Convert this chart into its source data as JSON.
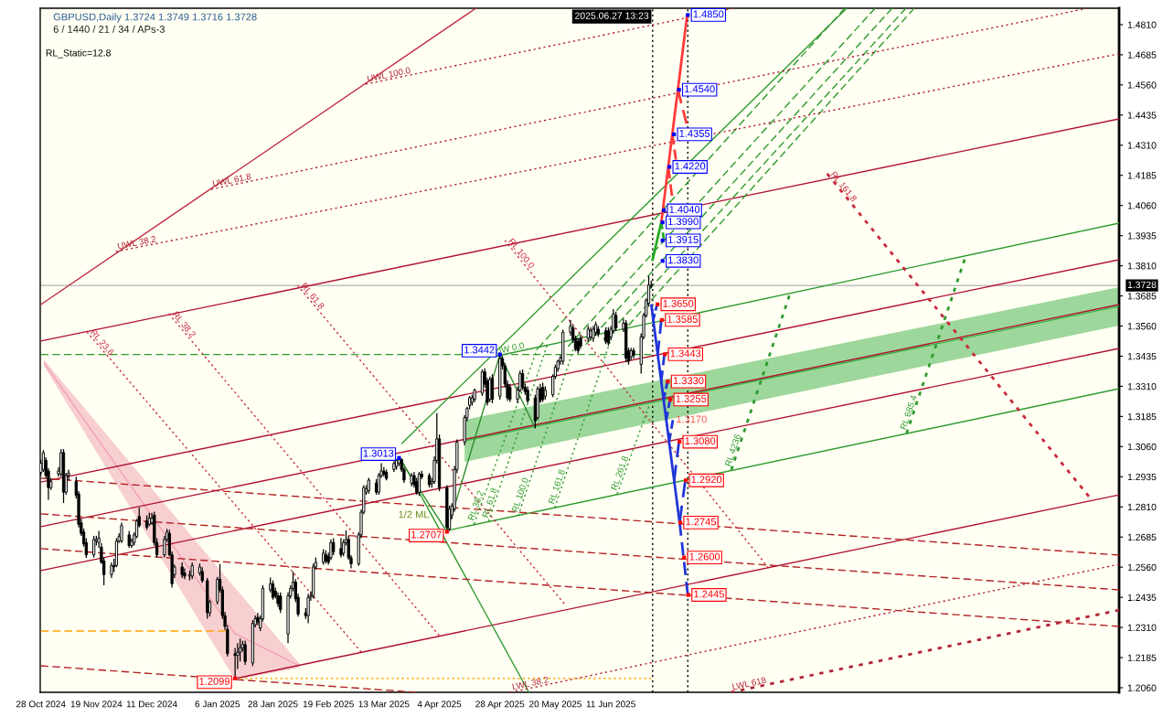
{
  "chart_data": {
    "type": "candlestick",
    "title": "GBPUSD,Daily 1.3724 1.3749 1.3716 1.3728",
    "subtitle": "6 / 1440 / 21 / 34 / APs-3",
    "color": "#000000",
    "x": [
      "2024-10-28",
      "2024-10-29",
      "2024-10-30",
      "2024-10-31",
      "2024-11-01",
      "2024-11-04",
      "2024-11-05",
      "2024-11-06",
      "2024-11-07",
      "2024-11-08",
      "2024-11-11",
      "2024-11-12",
      "2024-11-13",
      "2024-11-14",
      "2024-11-15",
      "2024-11-18",
      "2024-11-19",
      "2024-11-20",
      "2024-11-21",
      "2024-11-22",
      "2024-11-25",
      "2024-11-26",
      "2024-11-27",
      "2024-11-28",
      "2024-11-29",
      "2024-12-02",
      "2024-12-03",
      "2024-12-04",
      "2024-12-05",
      "2024-12-06",
      "2024-12-09",
      "2024-12-10",
      "2024-12-11",
      "2024-12-12",
      "2024-12-13",
      "2024-12-16",
      "2024-12-17",
      "2024-12-18",
      "2024-12-19",
      "2024-12-20",
      "2024-12-23",
      "2024-12-24",
      "2024-12-26",
      "2024-12-27",
      "2024-12-30",
      "2024-12-31",
      "2025-01-02",
      "2025-01-03",
      "2025-01-06",
      "2025-01-07",
      "2025-01-08",
      "2025-01-09",
      "2025-01-10",
      "2025-01-13",
      "2025-01-14",
      "2025-01-15",
      "2025-01-16",
      "2025-01-17",
      "2025-01-20",
      "2025-01-21",
      "2025-01-22",
      "2025-01-23",
      "2025-01-24",
      "2025-01-27",
      "2025-01-28",
      "2025-01-29",
      "2025-01-30",
      "2025-01-31",
      "2025-02-03",
      "2025-02-04",
      "2025-02-05",
      "2025-02-06",
      "2025-02-07",
      "2025-02-10",
      "2025-02-11",
      "2025-02-12",
      "2025-02-13",
      "2025-02-14",
      "2025-02-17",
      "2025-02-18",
      "2025-02-19",
      "2025-02-20",
      "2025-02-21",
      "2025-02-24",
      "2025-02-25",
      "2025-02-26",
      "2025-02-27",
      "2025-02-28",
      "2025-03-03",
      "2025-03-04",
      "2025-03-05",
      "2025-03-06",
      "2025-03-07",
      "2025-03-10",
      "2025-03-11",
      "2025-03-12",
      "2025-03-13",
      "2025-03-14",
      "2025-03-17",
      "2025-03-18",
      "2025-03-19",
      "2025-03-20",
      "2025-03-21",
      "2025-03-24",
      "2025-03-25",
      "2025-03-26",
      "2025-03-27",
      "2025-03-28",
      "2025-03-31",
      "2025-04-01",
      "2025-04-02",
      "2025-04-03",
      "2025-04-04",
      "2025-04-07",
      "2025-04-08",
      "2025-04-09",
      "2025-04-10",
      "2025-04-11",
      "2025-04-14",
      "2025-04-15",
      "2025-04-16",
      "2025-04-17",
      "2025-04-18",
      "2025-04-21",
      "2025-04-22",
      "2025-04-23",
      "2025-04-24",
      "2025-04-25",
      "2025-04-28",
      "2025-04-29",
      "2025-04-30",
      "2025-05-01",
      "2025-05-02",
      "2025-05-05",
      "2025-05-06",
      "2025-05-07",
      "2025-05-08",
      "2025-05-09",
      "2025-05-12",
      "2025-05-13",
      "2025-05-14",
      "2025-05-15",
      "2025-05-16",
      "2025-05-19",
      "2025-05-20",
      "2025-05-21",
      "2025-05-22",
      "2025-05-23",
      "2025-05-26",
      "2025-05-27",
      "2025-05-28",
      "2025-05-29",
      "2025-05-30",
      "2025-06-02",
      "2025-06-03",
      "2025-06-04",
      "2025-06-05",
      "2025-06-06",
      "2025-06-09",
      "2025-06-10",
      "2025-06-11",
      "2025-06-12",
      "2025-06-13",
      "2025-06-16",
      "2025-06-17",
      "2025-06-18",
      "2025-06-19",
      "2025-06-20",
      "2025-06-23",
      "2025-06-24",
      "2025-06-25",
      "2025-06-26",
      "2025-06-27"
    ],
    "ohlc": [
      [
        1.2953,
        1.3005,
        1.294,
        1.2991
      ],
      [
        1.2965,
        1.3045,
        1.2955,
        1.3035
      ],
      [
        1.3003,
        1.3016,
        1.293,
        1.294
      ],
      [
        1.2959,
        1.297,
        1.2839,
        1.289
      ],
      [
        1.289,
        1.293,
        1.288,
        1.2915
      ],
      [
        1.2946,
        1.2975,
        1.2935,
        1.2959
      ],
      [
        1.2946,
        1.305,
        1.2935,
        1.3035
      ],
      [
        1.3035,
        1.305,
        1.2826,
        1.2871
      ],
      [
        1.2871,
        1.295,
        1.286,
        1.294
      ],
      [
        1.294,
        1.2965,
        1.292,
        1.295
      ],
      [
        1.2915,
        1.2935,
        1.2845,
        1.2858
      ],
      [
        1.2864,
        1.2875,
        1.2725,
        1.2738
      ],
      [
        1.2744,
        1.276,
        1.269,
        1.27
      ],
      [
        1.2706,
        1.272,
        1.2645,
        1.2656
      ],
      [
        1.2662,
        1.268,
        1.2599,
        1.2611
      ],
      [
        1.2611,
        1.269,
        1.26,
        1.2675
      ],
      [
        1.2668,
        1.269,
        1.265,
        1.2675
      ],
      [
        1.2662,
        1.271,
        1.264,
        1.2681
      ],
      [
        1.2643,
        1.266,
        1.2574,
        1.258
      ],
      [
        1.2586,
        1.26,
        1.2485,
        1.2529
      ],
      [
        1.2529,
        1.258,
        1.2515,
        1.2567
      ],
      [
        1.2567,
        1.2595,
        1.254,
        1.2561
      ],
      [
        1.2567,
        1.268,
        1.256,
        1.2668
      ],
      [
        1.2668,
        1.27,
        1.266,
        1.2687
      ],
      [
        1.2668,
        1.2745,
        1.266,
        1.2732
      ],
      [
        1.2694,
        1.271,
        1.264,
        1.2649
      ],
      [
        1.2649,
        1.268,
        1.264,
        1.2668
      ],
      [
        1.2662,
        1.2705,
        1.265,
        1.2694
      ],
      [
        1.2687,
        1.276,
        1.268,
        1.2751
      ],
      [
        1.277,
        1.2807,
        1.2725,
        1.2732
      ],
      [
        1.2751,
        1.2775,
        1.2715,
        1.2725
      ],
      [
        1.2738,
        1.2785,
        1.273,
        1.2763
      ],
      [
        1.2744,
        1.2785,
        1.2735,
        1.2763
      ],
      [
        1.2776,
        1.279,
        1.265,
        1.2662
      ],
      [
        1.2662,
        1.268,
        1.26,
        1.2611
      ],
      [
        1.2611,
        1.269,
        1.26,
        1.2675
      ],
      [
        1.2675,
        1.2719,
        1.2665,
        1.2706
      ],
      [
        1.27,
        1.2715,
        1.2605,
        1.2611
      ],
      [
        1.2611,
        1.2625,
        1.2475,
        1.2491
      ],
      [
        1.2529,
        1.257,
        1.2515,
        1.2561
      ],
      [
        1.2561,
        1.258,
        1.2515,
        1.2529
      ],
      [
        1.2536,
        1.2555,
        1.251,
        1.2523
      ],
      [
        1.2523,
        1.2545,
        1.2505,
        1.2529
      ],
      [
        1.2523,
        1.258,
        1.251,
        1.2567
      ],
      [
        1.2536,
        1.2575,
        1.2525,
        1.2561
      ],
      [
        1.2542,
        1.256,
        1.2495,
        1.2504
      ],
      [
        1.2504,
        1.2515,
        1.2346,
        1.2371
      ],
      [
        1.2371,
        1.2425,
        1.2355,
        1.2416
      ],
      [
        1.2416,
        1.252,
        1.2405,
        1.251
      ],
      [
        1.251,
        1.2573,
        1.2455,
        1.2466
      ],
      [
        1.2466,
        1.248,
        1.2345,
        1.2359
      ],
      [
        1.2359,
        1.2375,
        1.23,
        1.2314
      ],
      [
        1.2302,
        1.232,
        1.219,
        1.2201
      ],
      [
        1.2201,
        1.2225,
        1.2099,
        1.2194
      ],
      [
        1.2194,
        1.2245,
        1.2138,
        1.2207
      ],
      [
        1.2207,
        1.2264,
        1.2169,
        1.2226
      ],
      [
        1.2226,
        1.2255,
        1.221,
        1.2239
      ],
      [
        1.2239,
        1.2255,
        1.2155,
        1.2169
      ],
      [
        1.2163,
        1.234,
        1.215,
        1.2327
      ],
      [
        1.2321,
        1.236,
        1.231,
        1.2346
      ],
      [
        1.2352,
        1.237,
        1.232,
        1.2333
      ],
      [
        1.2308,
        1.236,
        1.2295,
        1.2346
      ],
      [
        1.2346,
        1.2485,
        1.2335,
        1.2472
      ],
      [
        1.2466,
        1.2517,
        1.2455,
        1.2491
      ],
      [
        1.2491,
        1.2505,
        1.2425,
        1.2435
      ],
      [
        1.246,
        1.2475,
        1.243,
        1.2441
      ],
      [
        1.2441,
        1.2455,
        1.2395,
        1.2409
      ],
      [
        1.2441,
        1.2455,
        1.237,
        1.2384
      ],
      [
        1.2283,
        1.2455,
        1.2245,
        1.2441
      ],
      [
        1.2441,
        1.2485,
        1.243,
        1.2472
      ],
      [
        1.2472,
        1.2542,
        1.246,
        1.2498
      ],
      [
        1.2498,
        1.251,
        1.2415,
        1.2428
      ],
      [
        1.2435,
        1.245,
        1.2355,
        1.2365
      ],
      [
        1.2371,
        1.239,
        1.2345,
        1.2359
      ],
      [
        1.2359,
        1.245,
        1.2327,
        1.2435
      ],
      [
        1.2435,
        1.246,
        1.242,
        1.2441
      ],
      [
        1.2441,
        1.2575,
        1.243,
        1.2561
      ],
      [
        1.2561,
        1.26,
        1.255,
        1.258
      ],
      [
        1.258,
        1.2635,
        1.257,
        1.2618
      ],
      [
        1.2611,
        1.263,
        1.2575,
        1.2586
      ],
      [
        1.2605,
        1.262,
        1.257,
        1.258
      ],
      [
        1.2599,
        1.2675,
        1.259,
        1.2662
      ],
      [
        1.2662,
        1.268,
        1.261,
        1.2624
      ],
      [
        1.2637,
        1.2681,
        1.26,
        1.2611
      ],
      [
        1.2618,
        1.2675,
        1.2605,
        1.2662
      ],
      [
        1.2662,
        1.2713,
        1.265,
        1.2675
      ],
      [
        1.2675,
        1.269,
        1.259,
        1.2599
      ],
      [
        1.2599,
        1.261,
        1.2555,
        1.2574
      ],
      [
        1.2574,
        1.2705,
        1.2565,
        1.2694
      ],
      [
        1.2694,
        1.28,
        1.268,
        1.2788
      ],
      [
        1.2788,
        1.29,
        1.278,
        1.289
      ],
      [
        1.2871,
        1.29,
        1.286,
        1.2884
      ],
      [
        1.2877,
        1.293,
        1.2865,
        1.2921
      ],
      [
        1.2909,
        1.2925,
        1.286,
        1.2871
      ],
      [
        1.2871,
        1.295,
        1.286,
        1.294
      ],
      [
        1.294,
        1.2991,
        1.293,
        1.2959
      ],
      [
        1.2959,
        1.2975,
        1.2935,
        1.2946
      ],
      [
        1.2953,
        1.2965,
        1.292,
        1.2928
      ],
      [
        1.2965,
        1.3,
        1.2955,
        1.299
      ],
      [
        1.2978,
        1.3008,
        1.2965,
        1.3003
      ],
      [
        1.299,
        1.3013,
        1.298,
        1.3006
      ],
      [
        1.3006,
        1.3012,
        1.2955,
        1.2965
      ],
      [
        1.2965,
        1.2975,
        1.291,
        1.2921
      ],
      [
        1.2908,
        1.295,
        1.2895,
        1.294
      ],
      [
        1.294,
        1.2955,
        1.289,
        1.2902
      ],
      [
        1.2915,
        1.293,
        1.286,
        1.287
      ],
      [
        1.287,
        1.2955,
        1.2855,
        1.2946
      ],
      [
        1.2946,
        1.296,
        1.2925,
        1.2934
      ],
      [
        1.294,
        1.295,
        1.289,
        1.2902
      ],
      [
        1.2908,
        1.293,
        1.289,
        1.2915
      ],
      [
        1.2915,
        1.302,
        1.2905,
        1.3003
      ],
      [
        1.3003,
        1.3199,
        1.299,
        1.3092
      ],
      [
        1.3092,
        1.311,
        1.2875,
        1.2889
      ],
      [
        1.2889,
        1.29,
        1.2707,
        1.2725
      ],
      [
        1.2719,
        1.2815,
        1.271,
        1.2801
      ],
      [
        1.2776,
        1.2825,
        1.276,
        1.2814
      ],
      [
        1.2801,
        1.298,
        1.279,
        1.2965
      ],
      [
        1.2965,
        1.309,
        1.295,
        1.3079
      ],
      [
        1.3079,
        1.319,
        1.3065,
        1.318
      ],
      [
        1.318,
        1.3225,
        1.3165,
        1.3218
      ],
      [
        1.3231,
        1.327,
        1.3215,
        1.3262
      ],
      [
        1.3243,
        1.3275,
        1.323,
        1.3262
      ],
      [
        1.3256,
        1.33,
        1.3245,
        1.3294
      ],
      [
        1.3281,
        1.338,
        1.327,
        1.337
      ],
      [
        1.337,
        1.3385,
        1.3305,
        1.3319
      ],
      [
        1.3332,
        1.3345,
        1.323,
        1.3243
      ],
      [
        1.3256,
        1.335,
        1.3245,
        1.3338
      ],
      [
        1.3344,
        1.336,
        1.324,
        1.3256
      ],
      [
        1.3269,
        1.3442,
        1.3255,
        1.3425
      ],
      [
        1.3425,
        1.3435,
        1.338,
        1.3395
      ],
      [
        1.3395,
        1.3405,
        1.3305,
        1.3319
      ],
      [
        1.3319,
        1.3335,
        1.325,
        1.3262
      ],
      [
        1.3306,
        1.332,
        1.3245,
        1.3256
      ],
      [
        1.3256,
        1.331,
        1.324,
        1.3294
      ],
      [
        1.3294,
        1.3375,
        1.3285,
        1.3363
      ],
      [
        1.3363,
        1.338,
        1.3295,
        1.3306
      ],
      [
        1.3306,
        1.332,
        1.3275,
        1.3288
      ],
      [
        1.3294,
        1.331,
        1.324,
        1.325
      ],
      [
        1.3262,
        1.3275,
        1.3136,
        1.3167
      ],
      [
        1.318,
        1.331,
        1.317,
        1.33
      ],
      [
        1.33,
        1.332,
        1.324,
        1.325
      ],
      [
        1.3306,
        1.3325,
        1.3245,
        1.3256
      ],
      [
        1.3269,
        1.331,
        1.3255,
        1.3294
      ],
      [
        1.3275,
        1.336,
        1.3265,
        1.3351
      ],
      [
        1.3351,
        1.34,
        1.334,
        1.3389
      ],
      [
        1.3382,
        1.342,
        1.337,
        1.3414
      ],
      [
        1.3414,
        1.344,
        1.34,
        1.3427
      ],
      [
        1.3414,
        1.3545,
        1.34,
        1.3534
      ],
      [
        1.3534,
        1.3585,
        1.352,
        1.3559
      ],
      [
        1.3553,
        1.3565,
        1.349,
        1.3502
      ],
      [
        1.3509,
        1.352,
        1.3455,
        1.3464
      ],
      [
        1.3496,
        1.351,
        1.3445,
        1.3458
      ],
      [
        1.3509,
        1.3525,
        1.3465,
        1.3477
      ],
      [
        1.3509,
        1.356,
        1.3495,
        1.3547
      ],
      [
        1.3515,
        1.3555,
        1.35,
        1.354
      ],
      [
        1.3509,
        1.356,
        1.3495,
        1.3547
      ],
      [
        1.3534,
        1.3578,
        1.352,
        1.3566
      ],
      [
        1.3547,
        1.356,
        1.3515,
        1.3528
      ],
      [
        1.354,
        1.3555,
        1.3485,
        1.3496
      ],
      [
        1.354,
        1.3555,
        1.3478,
        1.349
      ],
      [
        1.3515,
        1.356,
        1.35,
        1.3547
      ],
      [
        1.354,
        1.363,
        1.353,
        1.361
      ],
      [
        1.3604,
        1.362,
        1.354,
        1.3553
      ],
      [
        1.3547,
        1.359,
        1.3535,
        1.3572
      ],
      [
        1.3572,
        1.3585,
        1.341,
        1.3427
      ],
      [
        1.3458,
        1.347,
        1.34,
        1.3414
      ],
      [
        1.3433,
        1.347,
        1.342,
        1.3458
      ],
      [
        1.3458,
        1.347,
        1.3425,
        1.3439
      ],
      [
        1.3401,
        1.353,
        1.3363,
        1.3515
      ],
      [
        1.3515,
        1.3615,
        1.3505,
        1.3604
      ],
      [
        1.3604,
        1.3675,
        1.3595,
        1.3667
      ],
      [
        1.3654,
        1.3768,
        1.364,
        1.373
      ],
      [
        1.3724,
        1.3749,
        1.3716,
        1.3728
      ]
    ],
    "series": [
      {
        "type": "line",
        "x": [
          "2024-10-29T06:00",
          "2025-01-13",
          "2025-02-07T12:00"
        ],
        "values": [
          1.3407,
          1.2284,
          1.2151
        ],
        "lower": [
          1.3395,
          1.2094,
          1.2142
        ],
        "upper": [
          1.342,
          1.2474,
          1.216
        ],
        "color": "#f0a0b0"
      },
      {
        "type": "line",
        "x": [
          "2025-04-14",
          "2025-12-29T12:00"
        ],
        "values": [
          1.3084,
          1.3642
        ],
        "lower": [
          1.2997,
          1.3562
        ],
        "upper": [
          1.3171,
          1.3721
        ],
        "color": "#3cb043"
      },
      {
        "type": "line",
        "x": [
          "2024-10-28",
          "2025-12-29T12:00"
        ],
        "values": [
          1.3498,
          1.4419
        ],
        "color": "#b01030"
      },
      {
        "type": "line",
        "x": [
          "2024-10-28",
          "2025-12-29T12:00"
        ],
        "values": [
          1.2728,
          1.3649
        ],
        "color": "#b01030"
      },
      {
        "type": "line",
        "x": [
          "2024-10-28",
          "2025-12-29T12:00"
        ],
        "values": [
          1.2913,
          1.3835
        ],
        "color": "#b01030"
      },
      {
        "type": "line",
        "x": [
          "2024-10-28",
          "2025-12-29T12:00"
        ],
        "values": [
          1.2546,
          1.3467
        ],
        "color": "#b01030"
      },
      {
        "type": "line",
        "x": [
          "2025-01-13",
          "2025-12-29T12:00"
        ],
        "values": [
          1.2098,
          1.286
        ],
        "color": "#b01030"
      },
      {
        "type": "line",
        "x": [
          "2024-10-28",
          "2025-04-18T12:00"
        ],
        "values": [
          1.3649,
          1.4878
        ],
        "color": "#c0283c"
      },
      {
        "type": "line",
        "name": "UW 0.0",
        "x": [
          "2025-04-25T12:00",
          "2025-12-29T12:00"
        ],
        "values": [
          1.3433,
          1.3987
        ],
        "color": "#2e9a2e"
      },
      {
        "type": "line",
        "x": [
          "2025-04-07",
          "2025-12-29T12:00"
        ],
        "values": [
          1.2712,
          1.33
        ],
        "color": "#2e9a2e"
      },
      {
        "type": "line",
        "x": [
          "2025-03-20",
          "2025-09-12T12:00"
        ],
        "values": [
          1.3072,
          1.4878
        ],
        "color": "#2e9a2e"
      },
      {
        "type": "line",
        "x": [
          "2025-03-19T18:00",
          "2025-05-09T12:00"
        ],
        "values": [
          1.3008,
          1.2041
        ],
        "color": "#2e9a2e"
      },
      {
        "type": "line",
        "x": [
          "2025-05-13T04:00",
          "2025-09-11T18:00"
        ],
        "values": [
          1.3468,
          1.4878
        ],
        "color": "#2e9a2e",
        "line_style": "dashed"
      },
      {
        "type": "line",
        "x": [
          "2025-05-25",
          "2025-09-23T18:00"
        ],
        "values": [
          1.3475,
          1.4878
        ],
        "color": "#2e9a2e",
        "line_style": "dashed"
      },
      {
        "type": "line",
        "x": [
          "2025-06-01",
          "2025-09-30T12:00"
        ],
        "values": [
          1.3483,
          1.4878
        ],
        "color": "#2e9a2e",
        "line_style": "dashed"
      },
      {
        "type": "line",
        "x": [
          "2025-06-08",
          "2025-10-06"
        ],
        "values": [
          1.3504,
          1.4878
        ],
        "color": "#2e9a2e",
        "line_style": "dashed"
      },
      {
        "type": "line",
        "x": [
          "2025-06-18",
          "2025-10-09T06:00"
        ],
        "values": [
          1.3563,
          1.4878
        ],
        "color": "#2e9a2e",
        "line_style": "dashed"
      },
      {
        "type": "line",
        "x": [
          "2024-10-28",
          "2025-12-29T12:00"
        ],
        "values": [
          1.2929,
          1.261
        ],
        "color": "#b22222",
        "line_style": "dashed"
      },
      {
        "type": "line",
        "x": [
          "2024-10-28",
          "2025-12-29T12:00"
        ],
        "values": [
          1.2781,
          1.2466
        ],
        "color": "#b22222",
        "line_style": "dashed"
      },
      {
        "type": "line",
        "x": [
          "2024-10-28",
          "2025-12-29T12:00"
        ],
        "values": [
          1.2637,
          1.2314
        ],
        "color": "#b22222",
        "line_style": "dashed"
      },
      {
        "type": "line",
        "x": [
          "2024-10-28",
          "2025-03-26"
        ],
        "values": [
          1.2151,
          1.2041
        ],
        "color": "#b22222",
        "line_style": "dashed"
      },
      {
        "type": "line",
        "name": "UWL 38.2",
        "x": [
          "2024-11-26T18:00",
          "2025-12-29T12:00"
        ],
        "values": [
          1.3869,
          1.4689
        ],
        "color": "#b22234",
        "line_style": "dotted"
      },
      {
        "type": "line",
        "name": "UWL 61.8",
        "x": [
          "2025-01-03T12:00",
          "2025-12-17"
        ],
        "values": [
          1.4127,
          1.4878
        ],
        "color": "#b22234",
        "line_style": "dotted"
      },
      {
        "type": "line",
        "name": "UWL 100.0",
        "x": [
          "2025-03-05T18:00",
          "2025-07-29T12:00"
        ],
        "values": [
          1.4563,
          1.4878
        ],
        "color": "#b22234",
        "line_style": "dotted"
      },
      {
        "type": "line",
        "name": "RL 23.6",
        "x": [
          "2024-11-15T06:00",
          "2025-03-04"
        ],
        "values": [
          1.3536,
          1.2208
        ],
        "color": "#c8283c",
        "line_style": "dotted"
      },
      {
        "type": "line",
        "name": "RL 38.2",
        "x": [
          "2024-12-17T18:00",
          "2025-04-03T22:00"
        ],
        "values": [
          1.3611,
          1.2277
        ],
        "color": "#c8283c",
        "line_style": "dotted"
      },
      {
        "type": "line",
        "name": "RL 61.8",
        "x": [
          "2025-02-06T18:00",
          "2025-05-23T12:00"
        ],
        "values": [
          1.3729,
          1.2409
        ],
        "color": "#c8283c",
        "line_style": "dotted"
      },
      {
        "type": "line",
        "name": "RL 100.0",
        "x": [
          "2025-04-30",
          "2025-08-12T12:00"
        ],
        "values": [
          1.3915,
          1.2557
        ],
        "color": "#c8283c",
        "line_style": "dotted"
      },
      {
        "type": "line",
        "name": "RL 161.8",
        "x": [
          "2025-09-04T18:00",
          "2025-12-17T12:00"
        ],
        "values": [
          1.4192,
          1.2853
        ],
        "color": "#c8283c",
        "line_style": "dotted"
      },
      {
        "type": "line",
        "name": "RL 38.2",
        "x": [
          "2025-04-17T18:00",
          "2025-05-12T22:00"
        ],
        "values": [
          1.2739,
          1.3468
        ],
        "color": "#2e9a2e",
        "line_style": "dotted"
      },
      {
        "type": "line",
        "name": "RL 61.8",
        "x": [
          "2025-04-23T12:00",
          "2025-05-16T16:00"
        ],
        "values": [
          1.275,
          1.3479
        ],
        "color": "#2e9a2e",
        "line_style": "dotted"
      },
      {
        "type": "line",
        "name": "RL 100.0",
        "x": [
          "2025-05-05T06:00",
          "2025-05-28T10:00"
        ],
        "values": [
          1.2773,
          1.3503
        ],
        "color": "#2e9a2e",
        "line_style": "dotted"
      },
      {
        "type": "line",
        "name": "RL 161.8",
        "x": [
          "2025-05-19T18:00",
          "2025-06-11T22:00"
        ],
        "values": [
          1.2807,
          1.3534
        ],
        "color": "#2e9a2e",
        "line_style": "dotted"
      },
      {
        "type": "line",
        "name": "RL 261.8",
        "x": [
          "2025-06-13T12:00",
          "2025-06-26"
        ],
        "values": [
          1.2864,
          1.3226
        ],
        "color": "#2e9a2e",
        "line_style": "dotted"
      },
      {
        "type": "line",
        "name": "RL 4236",
        "x": [
          "2025-07-28T18:00",
          "2025-08-20T18:00"
        ],
        "values": [
          1.2963,
          1.3686
        ],
        "color": "#2e9a2e",
        "line_style": "dotted"
      },
      {
        "type": "line",
        "name": "RL 685.4",
        "x": [
          "2025-10-06T06:00",
          "2025-10-29T06:00"
        ],
        "values": [
          1.3115,
          1.3836
        ],
        "color": "#2e9a2e",
        "line_style": "dotted"
      },
      {
        "type": "line",
        "name": "LWL 38.2",
        "x": [
          "2025-05-02T06:00",
          "2025-12-29T12:00"
        ],
        "values": [
          1.2041,
          1.2572
        ],
        "color": "#b22234",
        "line_style": "dotted"
      },
      {
        "type": "line",
        "name": "LWL 618",
        "x": [
          "2025-07-28T12:00",
          "2025-12-29T12:00"
        ],
        "values": [
          1.2041,
          1.2382
        ],
        "color": "#b22234",
        "line_style": "dotted"
      },
      {
        "type": "line",
        "x": [
          "2024-10-28",
          "2025-04-13"
        ],
        "values": [
          1.3442,
          1.3442
        ],
        "color": "#2e9a2e",
        "line_style": "dashed"
      },
      {
        "type": "line",
        "x": [
          "2025-04-28",
          "2025-06-27"
        ],
        "values": [
          1.3442,
          1.3442
        ],
        "color": "#2e9a2e",
        "line_style": "dashed"
      },
      {
        "type": "line",
        "x": [
          "2024-10-28",
          "2025-01-09T06:00"
        ],
        "values": [
          1.2295,
          1.2295
        ],
        "color": "#ffa500",
        "line_style": "dashed"
      },
      {
        "type": "line",
        "x": [
          "2025-01-13",
          "2025-06-27"
        ],
        "values": [
          1.2099,
          1.2099
        ],
        "color": "#ffa500",
        "line_style": "dotted"
      },
      {
        "type": "line",
        "x": [
          "2025-03-19",
          "2025-04-07",
          "2025-04-28",
          "2025-05-12"
        ],
        "values": [
          1.3013,
          1.2707,
          1.3442,
          1.3136
        ],
        "color": "#2e8b2e"
      },
      {
        "type": "line",
        "x": [
          "2025-06-27T10:00",
          "2025-07-01T00:00"
        ],
        "values": [
          1.383,
          1.399
        ],
        "color": "#22aa22"
      },
      {
        "type": "line",
        "x": [
          "2025-07-01T00:00",
          "2025-07-02T00:00"
        ],
        "values": [
          1.399,
          1.392
        ],
        "color": "#22aa22",
        "line_style": "dashed"
      },
      {
        "type": "line",
        "x": [
          "2025-07-01T00:00",
          "2025-07-11T06:00"
        ],
        "values": [
          1.399,
          1.485
        ],
        "color": "#ff3a3a"
      },
      {
        "type": "line",
        "x": [
          "2025-07-07T13:00",
          "2025-07-11T00:00"
        ],
        "values": [
          1.454,
          1.44
        ],
        "color": "#ff3a3a",
        "line_style": "dashed"
      },
      {
        "type": "line",
        "x": [
          "2025-07-05T08:00",
          "2025-07-06T19:00"
        ],
        "values": [
          1.4355,
          1.425
        ],
        "color": "#ff3a3a",
        "line_style": "dashed"
      },
      {
        "type": "line",
        "x": [
          "2025-07-03T18:00",
          "2025-07-05T05:00"
        ],
        "values": [
          1.422,
          1.41
        ],
        "color": "#ff3a3a",
        "line_style": "dashed"
      },
      {
        "type": "line",
        "x": [
          "2025-06-27",
          "2025-07-08T06:00"
        ],
        "values": [
          1.365,
          1.2745
        ],
        "color": "#1f35d8"
      },
      {
        "type": "line",
        "x": [
          "2025-06-27T19:00",
          "2025-06-29T07:00"
        ],
        "values": [
          1.3585,
          1.365
        ],
        "color": "#1f35d8",
        "line_style": "dashed"
      },
      {
        "type": "line",
        "x": [
          "2025-06-29T14:00",
          "2025-07-01T00:00"
        ],
        "values": [
          1.3443,
          1.3585
        ],
        "color": "#1f35d8",
        "line_style": "dashed"
      },
      {
        "type": "line",
        "x": [
          "2025-06-30T23:00",
          "2025-07-02T05:00"
        ],
        "values": [
          1.333,
          1.3443
        ],
        "color": "#1f35d8",
        "line_style": "dashed"
      },
      {
        "type": "line",
        "x": [
          "2025-07-01T22:00",
          "2025-07-03T10:00"
        ],
        "values": [
          1.3255,
          1.333
        ],
        "color": "#1f35d8",
        "line_style": "dashed"
      },
      {
        "type": "line",
        "x": [
          "2025-07-02T23:00",
          "2025-07-04T10:00"
        ],
        "values": [
          1.317,
          1.3255
        ],
        "color": "#1f35d8",
        "line_style": "dashed"
      },
      {
        "type": "line",
        "x": [
          "2025-07-04T02:00",
          "2025-07-05T14:00"
        ],
        "values": [
          1.308,
          1.317
        ],
        "color": "#1f35d8",
        "line_style": "dashed"
      },
      {
        "type": "line",
        "x": [
          "2025-07-06T02:00",
          "2025-07-08T00:00"
        ],
        "values": [
          1.292,
          1.308
        ],
        "color": "#1f35d8",
        "line_style": "dashed"
      },
      {
        "type": "line",
        "x": [
          "2025-07-08T06:00",
          "2025-07-10T12:00"
        ],
        "values": [
          1.2745,
          1.292
        ],
        "color": "#1f35d8",
        "line_style": "dashed"
      },
      {
        "type": "line",
        "x": [
          "2025-07-08T06:00",
          "2025-07-11T12:00"
        ],
        "values": [
          1.2745,
          1.2445
        ],
        "color": "#1f35d8",
        "line_style": "dashed"
      },
      {
        "type": "scatter",
        "marker": "square",
        "color": "#0000ff",
        "x": [
          "2025-07-11T12:00",
          "2025-07-08T00:00",
          "2025-07-06T00:00",
          "2025-07-04T05:00",
          "2025-07-02T00:00",
          "2025-07-01T12:00",
          "2025-07-01T12:00",
          "2025-07-01T12:00",
          "2025-04-28",
          "2025-03-19"
        ],
        "values": [
          1.485,
          1.454,
          1.4355,
          1.422,
          1.404,
          1.399,
          1.3915,
          1.383,
          1.3442,
          1.3013
        ],
        "value_labels": [
          "1.4850",
          "1.4540",
          "1.4355",
          "1.4220",
          "1.4040",
          "1.3990",
          "1.3915",
          "1.3830",
          "1.3442",
          "1.3013"
        ]
      },
      {
        "type": "scatter",
        "marker": "square",
        "color": "#ff0000",
        "x": [
          "2025-06-29T12:00",
          "2025-07-01T05:00",
          "2025-07-02T10:00",
          "2025-07-03T14:00",
          "2025-07-04T14:00",
          "2025-07-08T05:00",
          "2025-07-10T17:00",
          "2025-07-08T12:00",
          "2025-07-10T00:00",
          "2025-07-11T17:00",
          "2025-04-07",
          "2025-01-13"
        ],
        "values": [
          1.365,
          1.3585,
          1.3443,
          1.333,
          1.3255,
          1.308,
          1.292,
          1.2745,
          1.26,
          1.2445,
          1.2707,
          1.2099
        ],
        "value_labels": [
          "1.3650",
          "1.3585",
          "1.3443",
          "1.3330",
          "1.3255",
          "1.3080",
          "1.2920",
          "1.2745",
          "1.2600",
          "1.2445",
          "1.2707",
          "1.2099"
        ]
      }
    ],
    "xlim": [
      "2024-10-27T18:00",
      "2025-12-29T12:00"
    ],
    "ylim": [
      1.2041,
      1.4878
    ],
    "xticks": [
      {
        "value": "2024-10-28",
        "label": "28 Oct 2024"
      },
      {
        "value": "2024-11-19",
        "label": "19 Nov 2024"
      },
      {
        "value": "2024-12-11",
        "label": "11 Dec 2024"
      },
      {
        "value": "2025-01-06",
        "label": "6 Jan 2025"
      },
      {
        "value": "2025-01-28",
        "label": "28 Jan 2025"
      },
      {
        "value": "2025-02-19",
        "label": "19 Feb 2025"
      },
      {
        "value": "2025-03-13",
        "label": "13 Mar 2025"
      },
      {
        "value": "2025-04-04",
        "label": "4 Apr 2025"
      },
      {
        "value": "2025-04-28",
        "label": "28 Apr 2025"
      },
      {
        "value": "2025-05-20",
        "label": "20 May 2025"
      },
      {
        "value": "2025-06-11",
        "label": "11 Jun 2025"
      }
    ],
    "yticks": [
      {
        "value": 1.206,
        "label": "1.2060"
      },
      {
        "value": 1.2185,
        "label": "1.2185"
      },
      {
        "value": 1.231,
        "label": "1.2310"
      },
      {
        "value": 1.2435,
        "label": "1.2435"
      },
      {
        "value": 1.256,
        "label": "1.2560"
      },
      {
        "value": 1.2685,
        "label": "1.2685"
      },
      {
        "value": 1.281,
        "label": "1.2810"
      },
      {
        "value": 1.2935,
        "label": "1.2935"
      },
      {
        "value": 1.306,
        "label": "1.3060"
      },
      {
        "value": 1.3185,
        "label": "1.3185"
      },
      {
        "value": 1.331,
        "label": "1.3310"
      },
      {
        "value": 1.3435,
        "label": "1.3435"
      },
      {
        "value": 1.356,
        "label": "1.3560"
      },
      {
        "value": 1.3685,
        "label": "1.3685"
      },
      {
        "value": 1.381,
        "label": "1.3810"
      },
      {
        "value": 1.3935,
        "label": "1.3935"
      },
      {
        "value": 1.406,
        "label": "1.4060"
      },
      {
        "value": 1.4185,
        "label": "1.4185"
      },
      {
        "value": 1.431,
        "label": "1.4310"
      },
      {
        "value": 1.4435,
        "label": "1.4435"
      },
      {
        "value": 1.456,
        "label": "1.4560"
      },
      {
        "value": 1.4685,
        "label": "1.4685"
      },
      {
        "value": 1.481,
        "label": "1.4810"
      }
    ],
    "ref_lines": [
      {
        "axis": "y",
        "value": 1.3728,
        "label": "1.3728",
        "color": "#c0c0c0"
      },
      {
        "axis": "x",
        "value": "2025-06-27T13:23",
        "label": "2025.06.27 13:23",
        "color": "#000000",
        "line_style": "dotted"
      },
      {
        "axis": "x",
        "value": "2025-07-11T12:00",
        "color": "#000000",
        "line_style": "dotted"
      }
    ],
    "annotations": [
      "RL_Static=12.8",
      {
        "text": "1/2 ML",
        "x": "2025-04-01",
        "y": 1.2775
      },
      {
        "text": "1.3170",
        "x": "2025-07-05T19:00",
        "y": 1.317
      }
    ]
  }
}
